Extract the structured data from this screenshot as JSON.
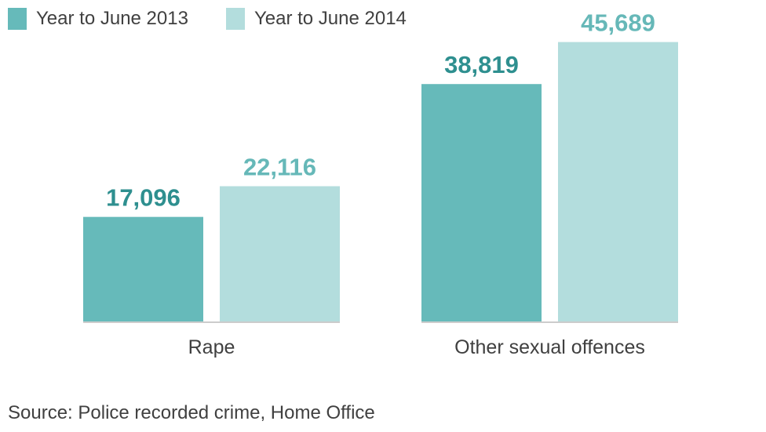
{
  "chart_data": {
    "type": "bar",
    "categories": [
      "Rape",
      "Other sexual offences"
    ],
    "series": [
      {
        "name": "Year to June 2013",
        "values": [
          17096,
          38819
        ],
        "labels": [
          "17,096",
          "38,819"
        ],
        "color": "#66baba",
        "label_color": "#2e8f8f"
      },
      {
        "name": "Year to June 2014",
        "values": [
          22116,
          45689
        ],
        "labels": [
          "22,116",
          "45,689"
        ],
        "color": "#b3dddd",
        "label_color": "#66b8b8"
      }
    ],
    "ylim": [
      0,
      50000
    ],
    "grid": false,
    "legend_position": "top-left",
    "data_labels": true
  },
  "source": "Source: Police recorded crime, Home Office"
}
